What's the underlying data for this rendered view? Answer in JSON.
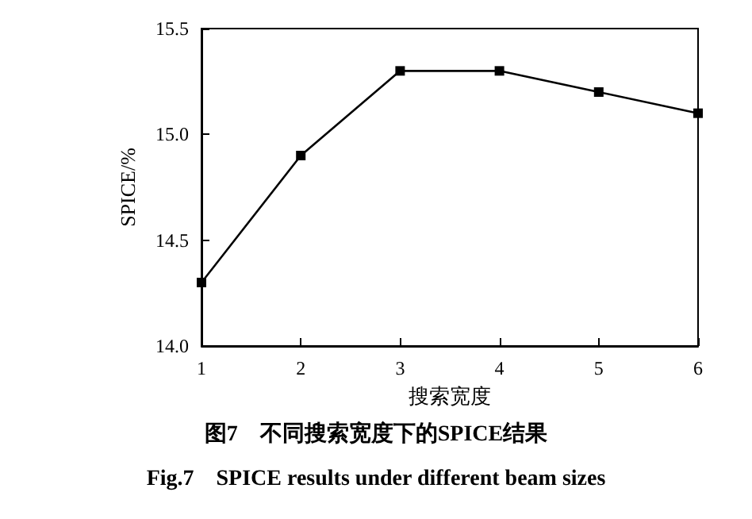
{
  "chart_data": {
    "type": "line",
    "title": "图7　不同搜索宽度下的SPICE结果",
    "subtitle": "Fig.7　SPICE results under different beam sizes",
    "xlabel": "搜索宽度",
    "ylabel": "SPICE/%",
    "x": [
      1,
      2,
      3,
      4,
      5,
      6
    ],
    "series": [
      {
        "color": "#000000",
        "values": [
          14.3,
          14.9,
          15.3,
          15.3,
          15.2,
          15.1
        ]
      }
    ],
    "xlim": [
      1,
      6
    ],
    "xticks": [
      1,
      2,
      3,
      4,
      5,
      6
    ],
    "ylim": [
      14.0,
      15.5
    ],
    "yticks": [
      {
        "value": 14,
        "label": "14.0"
      },
      14.5,
      {
        "value": 15,
        "label": "15.0"
      },
      15.5
    ],
    "grid": false,
    "marker": "square",
    "line_style": "solid"
  }
}
